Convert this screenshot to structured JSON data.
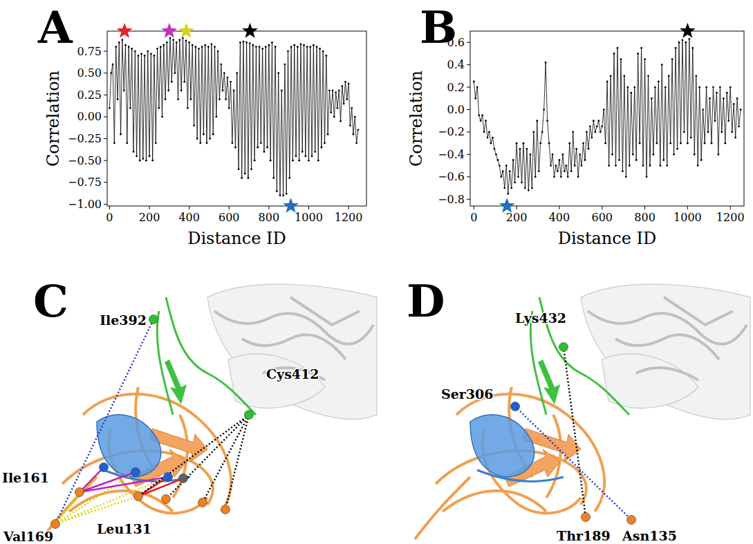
{
  "chart_data": [
    {
      "type": "line",
      "panel": "A",
      "x_label": "Distance ID",
      "y_label": "Correlation",
      "color": "#000000",
      "marker": "dot",
      "line_style": "solid",
      "xlim": [
        -12,
        1290
      ],
      "xticks": [
        0,
        200,
        400,
        600,
        800,
        1000,
        1200
      ],
      "ylim": [
        -1.02,
        0.98
      ],
      "yticks": [
        {
          "value": -1,
          "label": "−1.00"
        },
        {
          "value": -0.75,
          "label": "−0.75"
        },
        {
          "value": -0.5,
          "label": "−0.50"
        },
        {
          "value": -0.25,
          "label": "−0.25"
        },
        {
          "value": 0,
          "label": "0.00"
        },
        {
          "value": 0.25,
          "label": "0.25"
        },
        {
          "value": 0.5,
          "label": "0.50"
        },
        {
          "value": 0.75,
          "label": "0.75"
        }
      ],
      "x": [
        0,
        8,
        16,
        24,
        32,
        40,
        48,
        56,
        64,
        72,
        80,
        88,
        96,
        104,
        112,
        120,
        128,
        136,
        144,
        152,
        160,
        168,
        176,
        184,
        192,
        200,
        208,
        216,
        224,
        232,
        240,
        248,
        256,
        264,
        272,
        280,
        288,
        296,
        304,
        312,
        320,
        328,
        336,
        344,
        352,
        360,
        368,
        376,
        384,
        392,
        400,
        408,
        416,
        424,
        432,
        440,
        448,
        456,
        464,
        472,
        480,
        488,
        496,
        504,
        512,
        520,
        528,
        536,
        544,
        552,
        560,
        568,
        576,
        584,
        592,
        600,
        608,
        616,
        624,
        632,
        640,
        648,
        656,
        664,
        672,
        680,
        688,
        696,
        704,
        712,
        720,
        728,
        736,
        744,
        752,
        760,
        768,
        776,
        784,
        792,
        800,
        808,
        816,
        824,
        832,
        840,
        848,
        856,
        864,
        872,
        880,
        888,
        896,
        904,
        912,
        920,
        928,
        936,
        944,
        952,
        960,
        968,
        976,
        984,
        992,
        1000,
        1008,
        1016,
        1024,
        1032,
        1040,
        1048,
        1056,
        1064,
        1072,
        1080,
        1088,
        1096,
        1104,
        1112,
        1120,
        1128,
        1136,
        1144,
        1152,
        1160,
        1168,
        1176,
        1184,
        1192,
        1200,
        1208,
        1216,
        1224,
        1232,
        1240,
        1248
      ],
      "values": [
        0.1,
        0.5,
        0.6,
        -0.3,
        0.8,
        0.2,
        0.85,
        -0.2,
        0.88,
        0.3,
        0.82,
        -0.3,
        0.8,
        0.1,
        0.78,
        -0.4,
        0.75,
        -0.45,
        0.7,
        -0.5,
        0.72,
        -0.48,
        0.7,
        -0.5,
        0.75,
        -0.45,
        0.72,
        -0.5,
        0.7,
        -0.3,
        0.78,
        0.1,
        0.8,
        0.0,
        0.82,
        0.2,
        0.85,
        0.3,
        0.9,
        0.4,
        0.88,
        0.5,
        0.85,
        0.2,
        0.88,
        0.3,
        0.9,
        0.4,
        0.87,
        0.1,
        0.85,
        0.2,
        0.82,
        -0.1,
        0.8,
        -0.25,
        0.78,
        -0.3,
        0.8,
        -0.2,
        0.82,
        -0.3,
        0.8,
        -0.25,
        0.83,
        -0.2,
        0.8,
        0.0,
        0.75,
        0.2,
        0.6,
        0.3,
        0.5,
        0.2,
        0.45,
        0.1,
        0.4,
        -0.3,
        0.3,
        -0.35,
        0.5,
        -0.6,
        0.85,
        -0.7,
        0.86,
        -0.65,
        0.85,
        -0.7,
        0.84,
        -0.6,
        0.82,
        -0.5,
        0.8,
        -0.35,
        0.8,
        -0.3,
        0.78,
        -0.4,
        0.8,
        -0.35,
        0.82,
        -0.5,
        0.85,
        -0.7,
        0.8,
        -0.85,
        0.5,
        -0.9,
        0.3,
        -0.9,
        0.6,
        -0.88,
        0.75,
        -0.7,
        0.8,
        -0.5,
        0.82,
        -0.45,
        0.8,
        -0.5,
        0.83,
        -0.4,
        0.82,
        -0.45,
        0.8,
        -0.5,
        0.8,
        -0.45,
        0.82,
        -0.4,
        0.8,
        -0.5,
        0.78,
        -0.35,
        0.75,
        -0.3,
        0.7,
        -0.2,
        0.3,
        0.05,
        0.3,
        0.0,
        0.28,
        0.1,
        0.3,
        -0.05,
        0.35,
        0.15,
        0.4,
        0.2,
        0.38,
        -0.1,
        0.1,
        -0.2,
        0.0,
        -0.3,
        -0.15
      ],
      "annotations": [
        {
          "x": 75,
          "position": "top",
          "color": "#e8202a"
        },
        {
          "x": 300,
          "position": "top",
          "color": "#c030c0"
        },
        {
          "x": 385,
          "position": "top",
          "color": "#d8d020"
        },
        {
          "x": 705,
          "position": "top",
          "color": "#000000"
        },
        {
          "x": 910,
          "position": "bottom",
          "color": "#1f6fc0"
        }
      ]
    },
    {
      "type": "line",
      "panel": "B",
      "x_label": "Distance ID",
      "y_label": "Correlation",
      "color": "#000000",
      "marker": "dot",
      "line_style": "solid",
      "xlim": [
        -17,
        1264
      ],
      "xticks": [
        0,
        200,
        400,
        600,
        800,
        1000,
        1200
      ],
      "ylim": [
        -0.86,
        0.7
      ],
      "yticks": [
        {
          "value": -0.8,
          "label": "−0.8"
        },
        {
          "value": -0.6,
          "label": "−0.6"
        },
        {
          "value": -0.4,
          "label": "−0.4"
        },
        {
          "value": -0.2,
          "label": "−0.2"
        },
        {
          "value": 0,
          "label": "0.0"
        },
        {
          "value": 0.2,
          "label": "0.2"
        },
        {
          "value": 0.4,
          "label": "0.4"
        },
        {
          "value": 0.6,
          "label": "0.6"
        }
      ],
      "x": [
        0,
        8,
        16,
        24,
        32,
        40,
        48,
        56,
        64,
        72,
        80,
        88,
        96,
        104,
        112,
        120,
        128,
        136,
        144,
        152,
        160,
        168,
        176,
        184,
        192,
        200,
        208,
        216,
        224,
        232,
        240,
        248,
        256,
        264,
        272,
        280,
        288,
        296,
        304,
        312,
        320,
        328,
        336,
        344,
        352,
        360,
        368,
        376,
        384,
        392,
        400,
        408,
        416,
        424,
        432,
        440,
        448,
        456,
        464,
        472,
        480,
        488,
        496,
        504,
        512,
        520,
        528,
        536,
        544,
        552,
        560,
        568,
        576,
        584,
        592,
        600,
        608,
        616,
        624,
        632,
        640,
        648,
        656,
        664,
        672,
        680,
        688,
        696,
        704,
        712,
        720,
        728,
        736,
        744,
        752,
        760,
        768,
        776,
        784,
        792,
        800,
        808,
        816,
        824,
        832,
        840,
        848,
        856,
        864,
        872,
        880,
        888,
        896,
        904,
        912,
        920,
        928,
        936,
        944,
        952,
        960,
        968,
        976,
        984,
        992,
        1000,
        1008,
        1016,
        1024,
        1032,
        1040,
        1048,
        1056,
        1064,
        1072,
        1080,
        1088,
        1096,
        1104,
        1112,
        1120,
        1128,
        1136,
        1144,
        1152,
        1160,
        1168,
        1176,
        1184,
        1192,
        1200,
        1208,
        1216,
        1224,
        1232,
        1240,
        1248
      ],
      "values": [
        0.25,
        0.1,
        0.2,
        -0.05,
        -0.1,
        -0.05,
        -0.2,
        -0.1,
        -0.25,
        -0.2,
        -0.3,
        -0.25,
        -0.35,
        -0.4,
        -0.45,
        -0.5,
        -0.6,
        -0.55,
        -0.7,
        -0.5,
        -0.75,
        -0.55,
        -0.7,
        -0.45,
        -0.65,
        -0.3,
        -0.6,
        -0.35,
        -0.65,
        -0.3,
        -0.7,
        -0.35,
        -0.72,
        -0.4,
        -0.7,
        -0.2,
        -0.6,
        -0.1,
        -0.55,
        -0.3,
        -0.2,
        0.0,
        0.42,
        -0.1,
        -0.3,
        -0.5,
        -0.4,
        -0.6,
        -0.5,
        -0.55,
        -0.45,
        -0.6,
        -0.4,
        -0.55,
        -0.5,
        -0.6,
        -0.3,
        -0.55,
        -0.2,
        -0.5,
        -0.35,
        -0.6,
        -0.4,
        -0.5,
        -0.3,
        -0.45,
        -0.2,
        -0.35,
        -0.15,
        -0.25,
        -0.1,
        -0.2,
        -0.15,
        -0.1,
        -0.2,
        -0.15,
        0.0,
        -0.3,
        0.25,
        -0.5,
        0.3,
        -0.4,
        0.5,
        -0.5,
        0.55,
        -0.45,
        0.45,
        -0.55,
        0.3,
        -0.6,
        0.2,
        -0.5,
        0.15,
        -0.4,
        0.2,
        -0.45,
        0.5,
        -0.3,
        0.55,
        -0.5,
        0.45,
        -0.6,
        0.3,
        -0.5,
        0.1,
        -0.4,
        0.2,
        -0.3,
        0.25,
        -0.5,
        0.4,
        -0.45,
        0.2,
        -0.5,
        0.3,
        -0.3,
        0.45,
        -0.4,
        0.55,
        -0.35,
        0.6,
        -0.3,
        0.62,
        -0.2,
        0.6,
        -0.3,
        0.63,
        -0.25,
        0.55,
        -0.4,
        0.3,
        -0.5,
        0.2,
        -0.45,
        0.0,
        -0.3,
        0.2,
        -0.2,
        0.1,
        -0.3,
        0.2,
        -0.1,
        0.15,
        -0.4,
        0.2,
        -0.2,
        0.1,
        -0.3,
        0.15,
        -0.1,
        0.2,
        -0.2,
        0.05,
        -0.25,
        0.1,
        -0.15,
        0.0
      ],
      "annotations": [
        {
          "x": 1000,
          "position": "top",
          "color": "#000000"
        },
        {
          "x": 155,
          "position": "bottom",
          "color": "#1f6fc0"
        }
      ]
    }
  ],
  "structures": [
    {
      "panel": "C",
      "residues": [
        {
          "label": "Ile392",
          "color": "#30c030"
        },
        {
          "label": "Cys412",
          "color": "#30c030"
        },
        {
          "label": "Ile161",
          "color": "#f08020"
        },
        {
          "label": "Leu131",
          "color": "#f08020"
        },
        {
          "label": "Val169",
          "color": "#f08020"
        },
        {
          "label": null,
          "color": "#f08020"
        },
        {
          "label": null,
          "color": "#f08020"
        },
        {
          "label": null,
          "color": "#f08020"
        },
        {
          "label": null,
          "color": "#2060d0"
        },
        {
          "label": null,
          "color": "#2060d0"
        },
        {
          "label": null,
          "color": "#2060d0"
        },
        {
          "label": null,
          "color": "#606060"
        }
      ],
      "distances": [
        {
          "from": 4,
          "to": 0,
          "color": "#2030d0",
          "line_style": "dotted"
        },
        {
          "from": 4,
          "to": 2,
          "color": "#d4d400",
          "line_style": "dotted"
        },
        {
          "from": 4,
          "to": 3,
          "color": "#d4d400",
          "line_style": "dotted"
        },
        {
          "from": 4,
          "to": 8,
          "color": "#d4d400",
          "line_style": "dotted"
        },
        {
          "from": 4,
          "to": 9,
          "color": "#d4d400",
          "line_style": "dotted"
        },
        {
          "from": 4,
          "to": 10,
          "color": "#d4d400",
          "line_style": "dotted"
        },
        {
          "from": 2,
          "to": 8,
          "color": "#c020c0",
          "line_style": "solid"
        },
        {
          "from": 2,
          "to": 9,
          "color": "#c020c0",
          "line_style": "solid"
        },
        {
          "from": 2,
          "to": 10,
          "color": "#c020c0",
          "line_style": "solid"
        },
        {
          "from": 3,
          "to": 10,
          "color": "#e02020",
          "line_style": "solid"
        },
        {
          "from": 3,
          "to": 11,
          "color": "#e02020",
          "line_style": "solid"
        },
        {
          "from": 1,
          "to": 3,
          "color": "#000000",
          "line_style": "dotted"
        },
        {
          "from": 1,
          "to": 5,
          "color": "#000000",
          "line_style": "dotted"
        },
        {
          "from": 1,
          "to": 6,
          "color": "#000000",
          "line_style": "dotted"
        },
        {
          "from": 1,
          "to": 7,
          "color": "#000000",
          "line_style": "dotted"
        }
      ]
    },
    {
      "panel": "D",
      "residues": [
        {
          "label": "Lys432",
          "color": "#30c030"
        },
        {
          "label": "Ser306",
          "color": "#2060d0"
        },
        {
          "label": "Thr189",
          "color": "#f08020"
        },
        {
          "label": "Asn135",
          "color": "#f08020"
        }
      ],
      "distances": [
        {
          "from": 0,
          "to": 2,
          "color": "#000000",
          "line_style": "dotted"
        },
        {
          "from": 1,
          "to": 3,
          "color": "#2030d0",
          "line_style": "dotted"
        }
      ]
    }
  ]
}
